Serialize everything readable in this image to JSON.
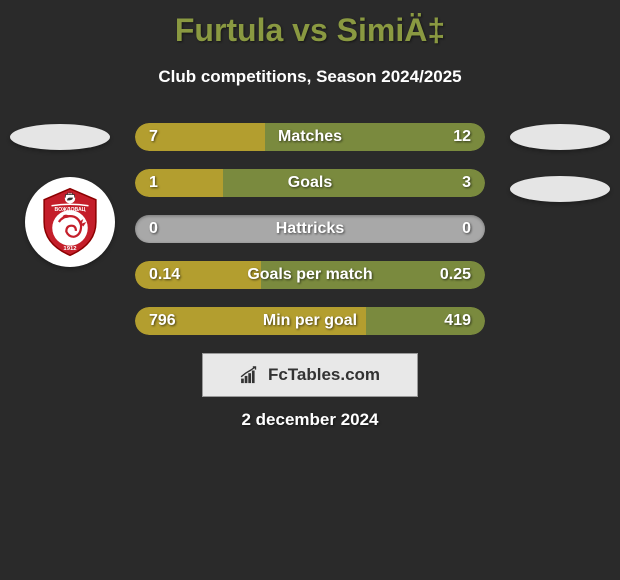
{
  "title": "Furtula vs SimiÄ‡",
  "subtitle": "Club competitions, Season 2024/2025",
  "date": "2 december 2024",
  "branding_text": "FcTables.com",
  "colors": {
    "background": "#2a2a2a",
    "title_color": "#8a9941",
    "left_bar": "#b39e2f",
    "right_bar": "#7a8a3e",
    "empty_bar": "#a8a8a8",
    "oval_bg": "#e5e5e5",
    "branding_bg": "#e8e8e8"
  },
  "stats": [
    {
      "label": "Matches",
      "left_value": "7",
      "right_value": "12",
      "left_pct": 37,
      "right_pct": 63
    },
    {
      "label": "Goals",
      "left_value": "1",
      "right_value": "3",
      "left_pct": 25,
      "right_pct": 75
    },
    {
      "label": "Hattricks",
      "left_value": "0",
      "right_value": "0",
      "left_pct": 0,
      "right_pct": 0
    },
    {
      "label": "Goals per match",
      "left_value": "0.14",
      "right_value": "0.25",
      "left_pct": 36,
      "right_pct": 64
    },
    {
      "label": "Min per goal",
      "left_value": "796",
      "right_value": "419",
      "left_pct": 66,
      "right_pct": 34
    }
  ]
}
